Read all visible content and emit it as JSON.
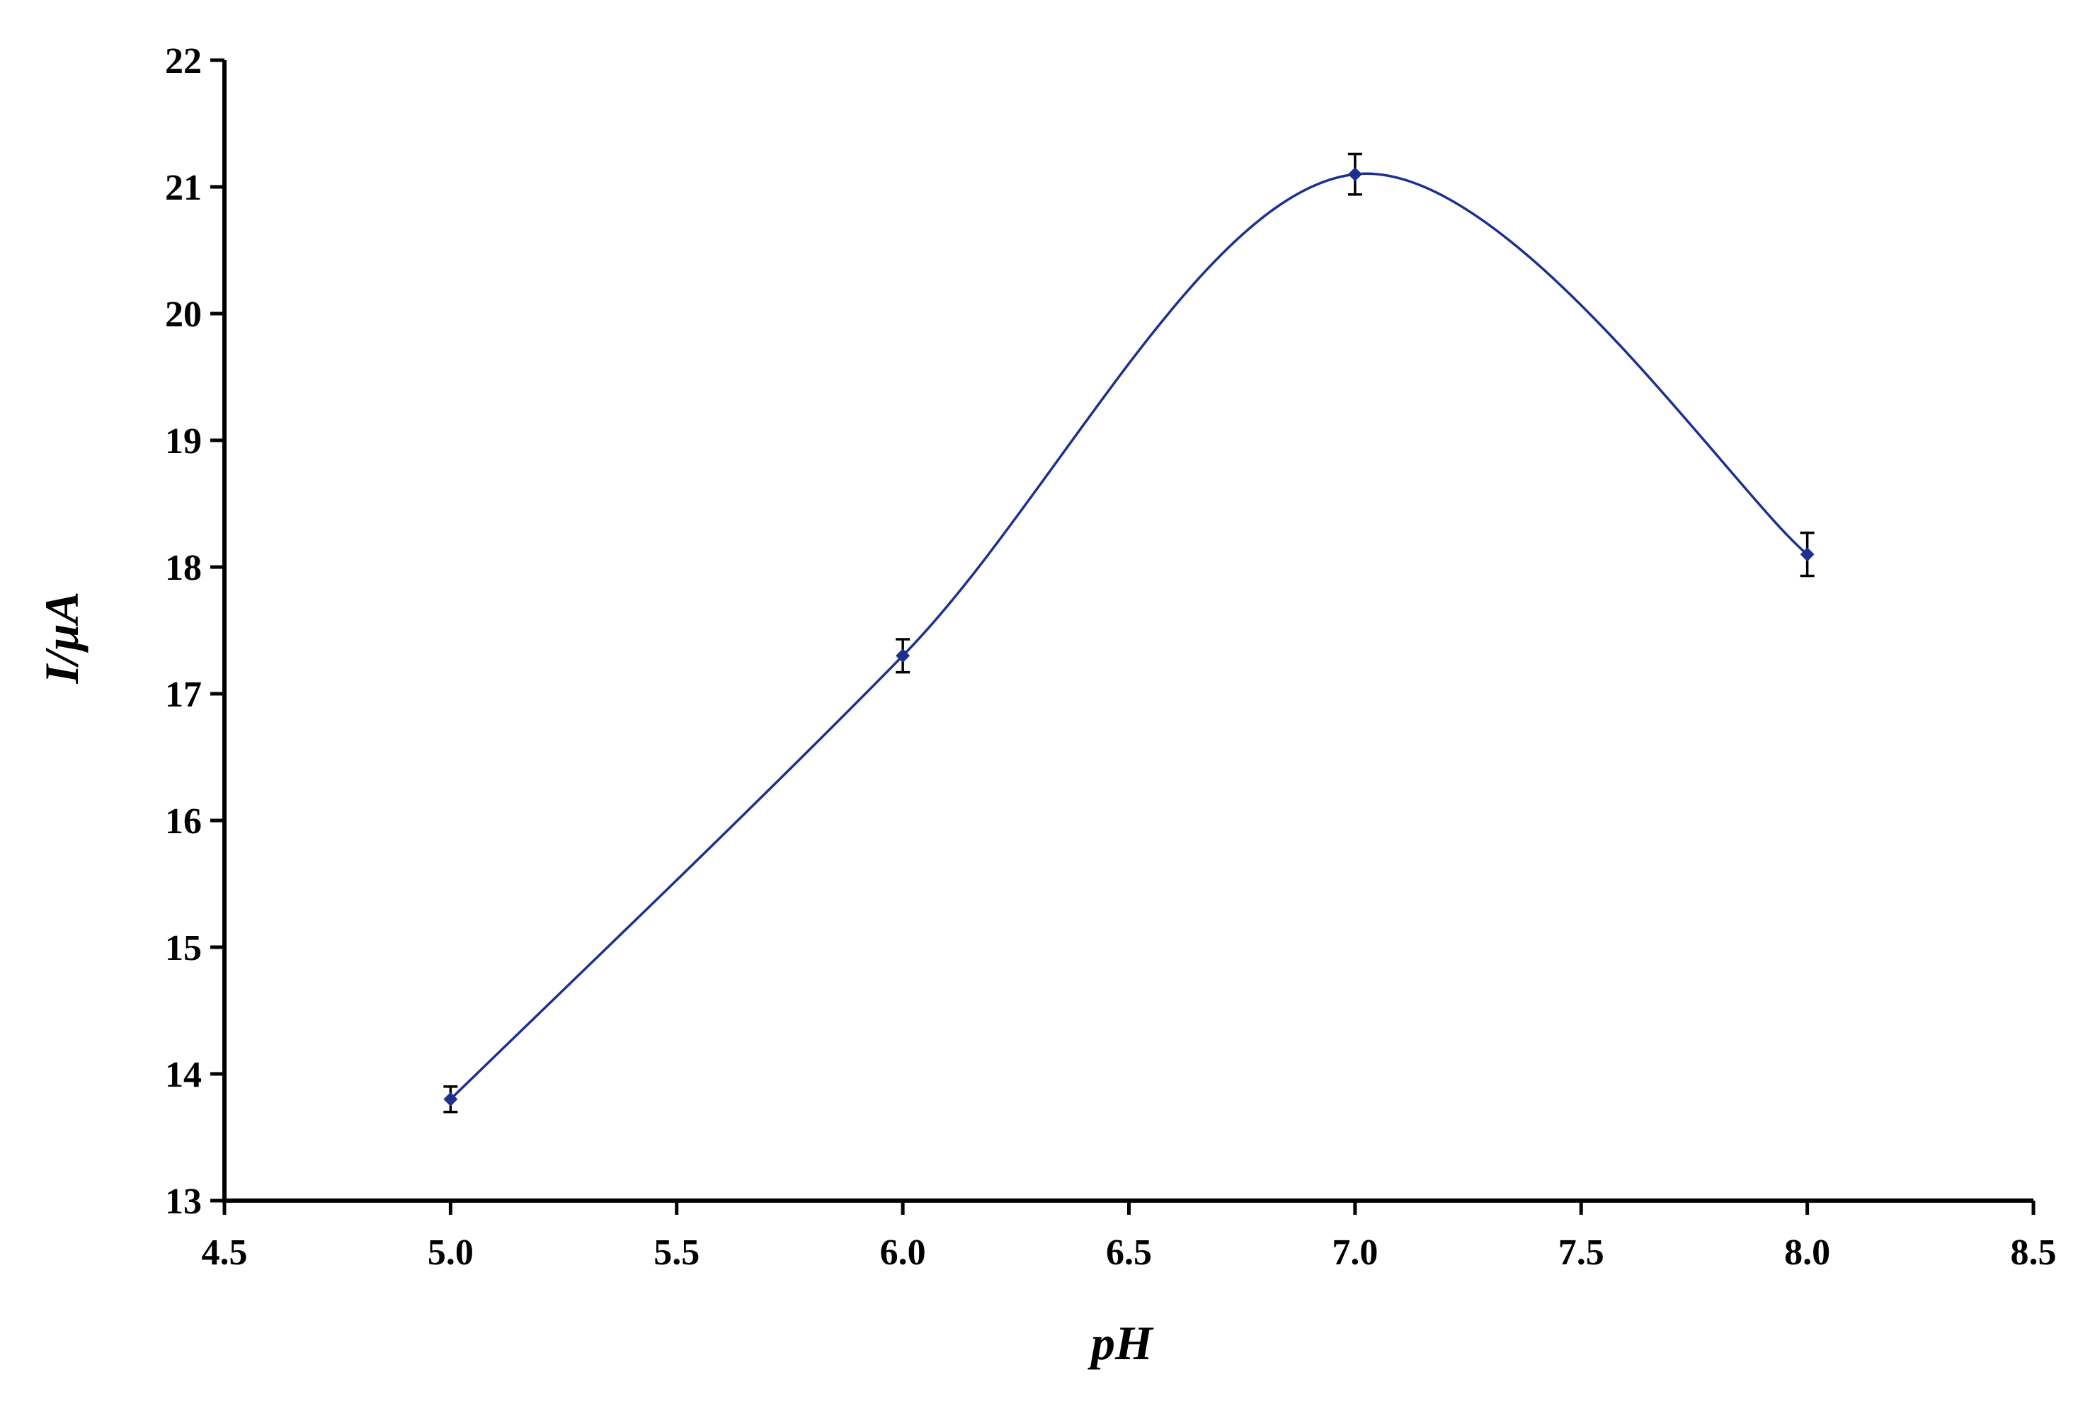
{
  "chart_data": {
    "type": "line",
    "title": "",
    "xlabel": "pH",
    "ylabel": "I/µA",
    "xlim": [
      4.5,
      8.5
    ],
    "ylim": [
      13,
      22
    ],
    "xticks": [
      "4.5",
      "5.0",
      "5.5",
      "6.0",
      "6.5",
      "7.0",
      "7.5",
      "8.0",
      "8.5"
    ],
    "yticks": [
      "13",
      "14",
      "15",
      "16",
      "17",
      "18",
      "19",
      "20",
      "21",
      "22"
    ],
    "grid": false,
    "legend": "none",
    "smoothed": true,
    "series": [
      {
        "x": [
          5.0,
          6.0,
          7.0,
          8.0
        ],
        "y": [
          13.8,
          17.3,
          21.1,
          18.1
        ],
        "error": [
          0.1,
          0.13,
          0.16,
          0.17
        ],
        "color": "#1f2f8f",
        "marker": "diamond"
      }
    ]
  }
}
